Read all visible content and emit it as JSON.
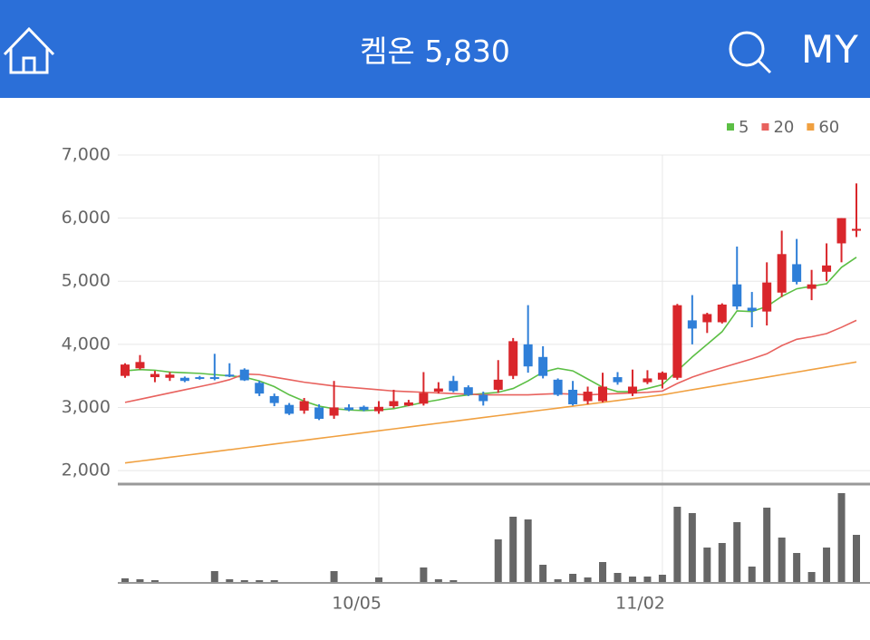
{
  "header": {
    "title": "켐온 5,830",
    "my": "MY"
  },
  "chart_data": {
    "type": "candlestick",
    "categories": [
      null,
      null,
      null,
      null,
      null,
      null,
      null,
      null,
      null,
      null,
      null,
      null,
      null,
      null,
      null,
      null,
      null,
      "10/05",
      null,
      null,
      null,
      null,
      null,
      null,
      null,
      null,
      null,
      null,
      null,
      null,
      null,
      null,
      null,
      null,
      null,
      null,
      "11/02",
      null,
      null,
      null,
      null,
      null,
      null,
      null,
      null,
      null,
      null,
      null,
      null,
      null
    ],
    "open": [
      3500,
      3620,
      3480,
      3470,
      3470,
      3480,
      3480,
      3520,
      3600,
      3390,
      3180,
      3040,
      2950,
      3000,
      2870,
      3000,
      3010,
      2940,
      3020,
      3030,
      3060,
      3250,
      3420,
      3320,
      3200,
      3280,
      3500,
      4000,
      3800,
      3440,
      3280,
      3100,
      3100,
      3480,
      3220,
      3400,
      3440,
      3470,
      4380,
      4350,
      4350,
      4950,
      4580,
      4520,
      4820,
      5270,
      4880,
      5150,
      5600,
      5800
    ],
    "high": [
      3700,
      3830,
      3580,
      3560,
      3490,
      3500,
      3850,
      3700,
      3620,
      3420,
      3220,
      3070,
      3150,
      3050,
      3420,
      3050,
      3030,
      3100,
      3280,
      3120,
      3560,
      3400,
      3500,
      3350,
      3250,
      3750,
      4100,
      4620,
      3970,
      3460,
      3420,
      3330,
      3550,
      3560,
      3600,
      3590,
      3570,
      4640,
      4780,
      4500,
      4650,
      5550,
      4830,
      5300,
      5800,
      5670,
      5180,
      5600,
      6000,
      6550
    ],
    "low": [
      3470,
      3600,
      3400,
      3420,
      3400,
      3440,
      3430,
      3480,
      3420,
      3180,
      3020,
      2880,
      2900,
      2800,
      2820,
      2940,
      2940,
      2900,
      2990,
      3020,
      3030,
      3220,
      3240,
      3180,
      3030,
      3230,
      3450,
      3550,
      3460,
      3180,
      3030,
      3050,
      3080,
      3360,
      3180,
      3370,
      3300,
      3440,
      4000,
      4180,
      4330,
      4550,
      4270,
      4300,
      4750,
      4950,
      4700,
      5000,
      5300,
      5700
    ],
    "close": [
      3680,
      3720,
      3530,
      3520,
      3420,
      3460,
      3460,
      3500,
      3430,
      3220,
      3070,
      2900,
      3100,
      2820,
      3000,
      2960,
      2960,
      3010,
      3100,
      3080,
      3230,
      3300,
      3260,
      3200,
      3100,
      3440,
      4050,
      3650,
      3500,
      3200,
      3050,
      3250,
      3330,
      3400,
      3330,
      3460,
      3550,
      4620,
      4250,
      4480,
      4630,
      4600,
      4530,
      4980,
      5430,
      4990,
      4950,
      5250,
      6000,
      5830
    ],
    "volume": [
      4,
      3,
      2,
      0,
      0,
      0,
      12,
      3,
      2,
      2,
      2,
      0,
      0,
      0,
      12,
      0,
      0,
      5,
      0,
      0,
      16,
      3,
      2,
      0,
      0,
      47,
      72,
      69,
      19,
      3,
      9,
      5,
      22,
      10,
      6,
      6,
      8,
      83,
      76,
      38,
      43,
      66,
      17,
      82,
      49,
      32,
      11,
      38,
      98,
      52
    ],
    "volume_color": "#666666",
    "volume_lim": [
      0,
      100
    ],
    "up_color": "#d9262b",
    "down_color": "#2f7fd8",
    "ma": [
      {
        "name": "5",
        "color": "#5cbf45",
        "values": [
          3580,
          3600,
          3590,
          3560,
          3550,
          3540,
          3520,
          3500,
          3480,
          3420,
          3330,
          3200,
          3100,
          3020,
          2980,
          2960,
          2950,
          2960,
          2980,
          3030,
          3080,
          3120,
          3170,
          3200,
          3220,
          3240,
          3300,
          3420,
          3560,
          3620,
          3580,
          3450,
          3320,
          3250,
          3250,
          3300,
          3360,
          3580,
          3800,
          4000,
          4200,
          4530,
          4520,
          4600,
          4760,
          4880,
          4920,
          4960,
          5220,
          5380
        ]
      },
      {
        "name": "20",
        "color": "#e8625e",
        "values": [
          3080,
          3130,
          3180,
          3230,
          3280,
          3330,
          3380,
          3440,
          3530,
          3520,
          3480,
          3440,
          3400,
          3370,
          3340,
          3320,
          3300,
          3280,
          3260,
          3250,
          3240,
          3230,
          3220,
          3210,
          3200,
          3200,
          3200,
          3200,
          3210,
          3220,
          3210,
          3200,
          3210,
          3220,
          3230,
          3240,
          3260,
          3380,
          3480,
          3560,
          3630,
          3700,
          3770,
          3850,
          3980,
          4080,
          4120,
          4170,
          4270,
          4380
        ]
      },
      {
        "name": "60",
        "color": "#f0a040",
        "values": [
          2120,
          2150,
          2180,
          2210,
          2240,
          2270,
          2300,
          2330,
          2360,
          2390,
          2420,
          2450,
          2480,
          2510,
          2540,
          2570,
          2600,
          2630,
          2660,
          2690,
          2720,
          2750,
          2780,
          2810,
          2840,
          2870,
          2900,
          2930,
          2960,
          2990,
          3020,
          3050,
          3080,
          3110,
          3140,
          3170,
          3200,
          3240,
          3280,
          3320,
          3360,
          3400,
          3440,
          3480,
          3520,
          3560,
          3600,
          3640,
          3680,
          3720
        ]
      }
    ],
    "ylim": [
      1800,
      7000
    ],
    "yticks": [
      {
        "value": 2000,
        "label": "2,000"
      },
      {
        "value": 3000,
        "label": "3,000"
      },
      {
        "value": 4000,
        "label": "4,000"
      },
      {
        "value": 5000,
        "label": "5,000"
      },
      {
        "value": 6000,
        "label": "6,000"
      },
      {
        "value": 7000,
        "label": "7,000"
      }
    ],
    "grid": true
  }
}
